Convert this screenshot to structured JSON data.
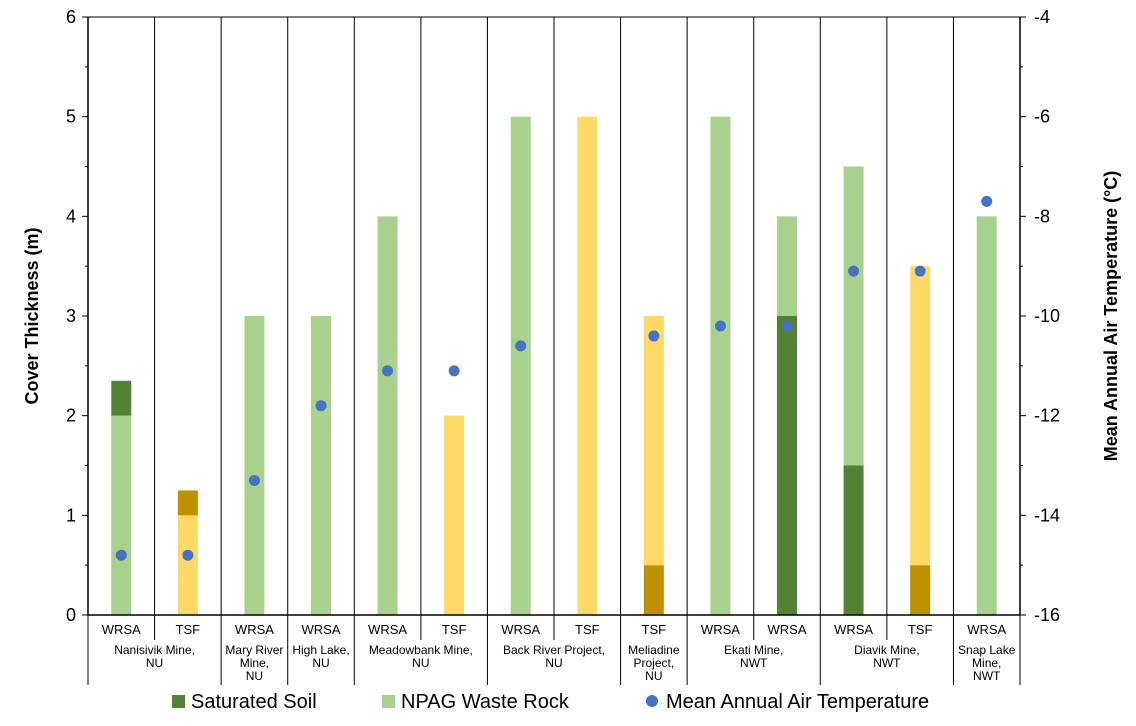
{
  "chart_data": {
    "type": "bar",
    "stacked": true,
    "categories": [
      "WRSA",
      "TSF",
      "WRSA",
      "WRSA",
      "WRSA",
      "TSF",
      "WRSA",
      "TSF",
      "TSF",
      "WRSA",
      "WRSA",
      "WRSA",
      "TSF",
      "WRSA"
    ],
    "groups": [
      {
        "name": "Nanisivik Mine,\nNU",
        "span": [
          0,
          1
        ]
      },
      {
        "name": "Mary River\nMine,\nNU",
        "span": [
          2,
          2
        ]
      },
      {
        "name": "High Lake,\nNU",
        "span": [
          3,
          3
        ]
      },
      {
        "name": "Meadowbank Mine,\nNU",
        "span": [
          4,
          5
        ]
      },
      {
        "name": "Back River Project,\nNU",
        "span": [
          6,
          7
        ]
      },
      {
        "name": "Meliadine\nProject,\nNU",
        "span": [
          8,
          8
        ]
      },
      {
        "name": "Ekati Mine,\nNWT",
        "span": [
          9,
          10
        ]
      },
      {
        "name": "Diavik Mine,\nNWT",
        "span": [
          11,
          12
        ]
      },
      {
        "name": "Snap Lake\nMine,\nNWT",
        "span": [
          13,
          13
        ]
      }
    ],
    "series": [
      {
        "name": "Saturated Soil",
        "color": "#548235",
        "axis": "left",
        "values": [
          0.35,
          0,
          0,
          0,
          0,
          0,
          0,
          0,
          0,
          0,
          3.0,
          1.5,
          0,
          0
        ],
        "stack_order": 2
      },
      {
        "name": "NPAG Waste Rock",
        "color": "#a9d18e",
        "axis": "left",
        "values": [
          2.0,
          0,
          3.0,
          3.0,
          4.0,
          0,
          5.0,
          0,
          0,
          5.0,
          1.0,
          3.0,
          0,
          4.0
        ],
        "stack_order": 1
      },
      {
        "name": "Mean Annual Air Temperature",
        "color": "#4472c4",
        "axis": "right",
        "marker": "circle",
        "values": [
          -14.8,
          -14.8,
          -13.3,
          -11.8,
          -11.1,
          -11.1,
          -10.6,
          null,
          -10.4,
          -10.2,
          -10.2,
          -9.1,
          -9.1,
          -7.7
        ]
      }
    ],
    "unlabeled_series": [
      {
        "color": "#bf9000",
        "values": [
          0,
          0.25,
          0,
          0,
          0,
          0,
          0,
          0,
          0.5,
          0,
          0,
          0,
          0.5,
          0
        ],
        "stack_order": 1
      },
      {
        "color": "#ffd966",
        "values": [
          0,
          1.0,
          0,
          0,
          0,
          2.0,
          0,
          5.0,
          2.5,
          0,
          0,
          0,
          3.0,
          0
        ],
        "stack_order": 2
      }
    ],
    "stack_rule": "series with stack_order 1 sit at the base, stack_order 2 on top; TSF bars draw the #ffd966 segment above the #bf9000 base except Nanisivik TSF where #bf9000 sits on top",
    "ylabel": "Cover Thickness (m)",
    "ylim": [
      0,
      6
    ],
    "yticks": [
      "0",
      "1",
      "2",
      "3",
      "4",
      "5",
      "6"
    ],
    "y2label": "Mean Annual Air Temperature (°C)",
    "y2lim": [
      -16,
      -4
    ],
    "y2ticks": [
      "-16",
      "-14",
      "-12",
      "-10",
      "-8",
      "-6",
      "-4"
    ],
    "legend_position": "bottom",
    "grid": false
  }
}
